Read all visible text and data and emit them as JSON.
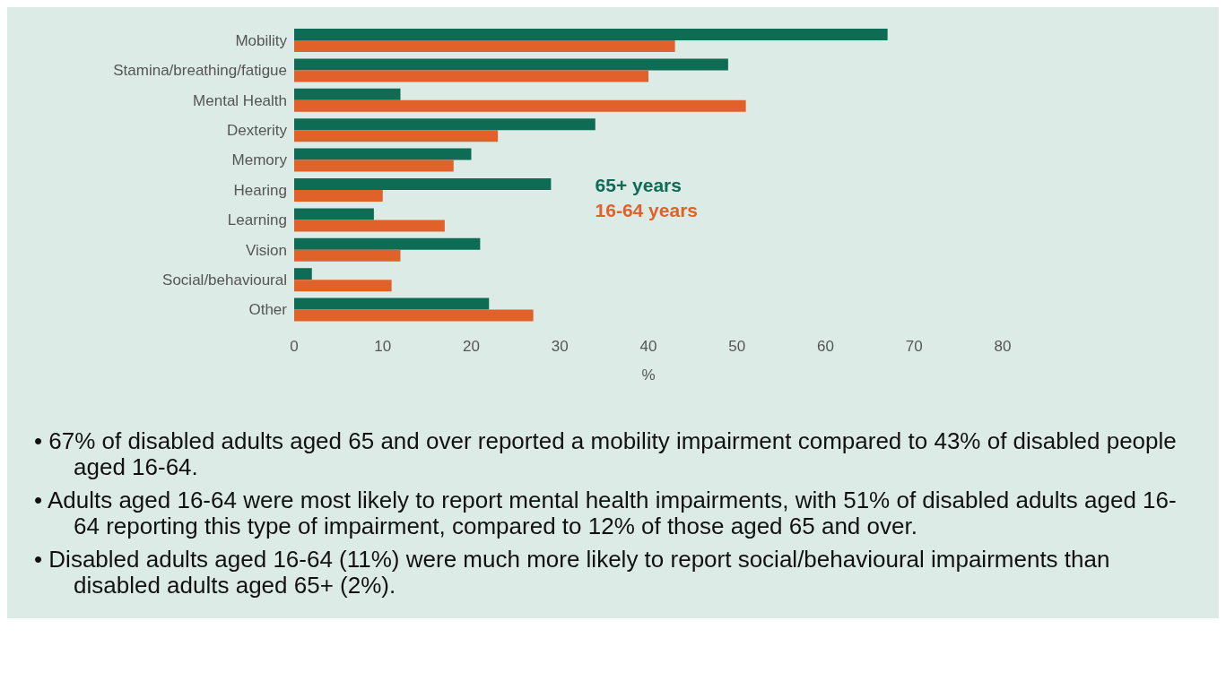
{
  "chart_data": {
    "type": "bar",
    "orientation": "horizontal",
    "xlabel": "%",
    "categories": [
      "Mobility",
      "Stamina/breathing/fatigue",
      "Mental Health",
      "Dexterity",
      "Memory",
      "Hearing",
      "Learning",
      "Vision",
      "Social/behavioural",
      "Other"
    ],
    "series": [
      {
        "name": "65+ years",
        "color": "#0e6b54",
        "values": [
          67,
          49,
          12,
          34,
          20,
          29,
          9,
          21,
          2,
          22
        ]
      },
      {
        "name": "16-64 years",
        "color": "#e0622a",
        "values": [
          43,
          40,
          51,
          23,
          18,
          10,
          17,
          12,
          11,
          27
        ]
      }
    ],
    "xlim": [
      0,
      80
    ],
    "xticks": [
      0,
      10,
      20,
      30,
      40,
      50,
      60,
      70,
      80
    ],
    "grid": false,
    "legend": "right",
    "annotations": [
      "• 67% of disabled adults aged 65 and over reported a mobility impairment compared to 43% of disabled people aged 16-64.",
      "• Adults aged 16-64 were most likely to report mental health impairments, with 51% of disabled adults aged 16-64 reporting this type of impairment, compared to 12% of those aged 65 and over.",
      "• Disabled adults aged 16-64 (11%) were much more likely to report social/behavioural impairments than disabled adults aged 65+ (2%)."
    ]
  }
}
